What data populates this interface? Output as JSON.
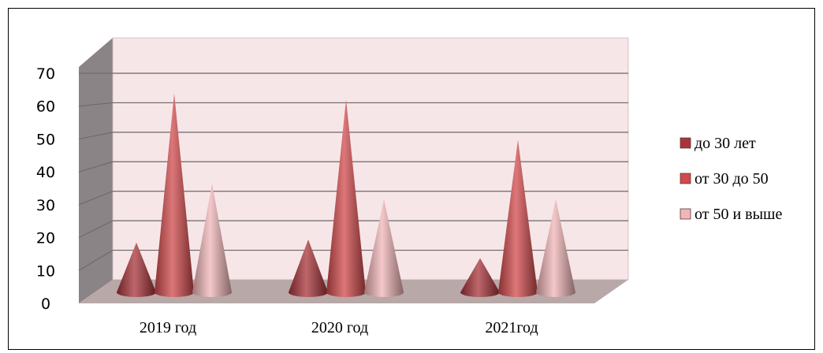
{
  "chart_data": {
    "type": "bar",
    "bar_shape": "cone",
    "three_d": true,
    "categories": [
      "2019 год",
      "2020 год",
      "2021год"
    ],
    "series": [
      {
        "name": "до 30 лет",
        "values": [
          16,
          17,
          11
        ],
        "color": "#a8343a"
      },
      {
        "name": "от 30 до 50",
        "values": [
          64,
          62,
          49
        ],
        "color": "#d14a4c"
      },
      {
        "name": "от 50 и выше",
        "values": [
          35,
          30,
          30
        ],
        "color": "#f0b6b8"
      }
    ],
    "yticks": [
      0,
      10,
      20,
      30,
      40,
      50,
      60,
      70
    ],
    "ylim": [
      0,
      70
    ],
    "grid": true,
    "legend": "right",
    "wall_color": "#f7e6e8",
    "floor_color": "#b8a8a8"
  }
}
